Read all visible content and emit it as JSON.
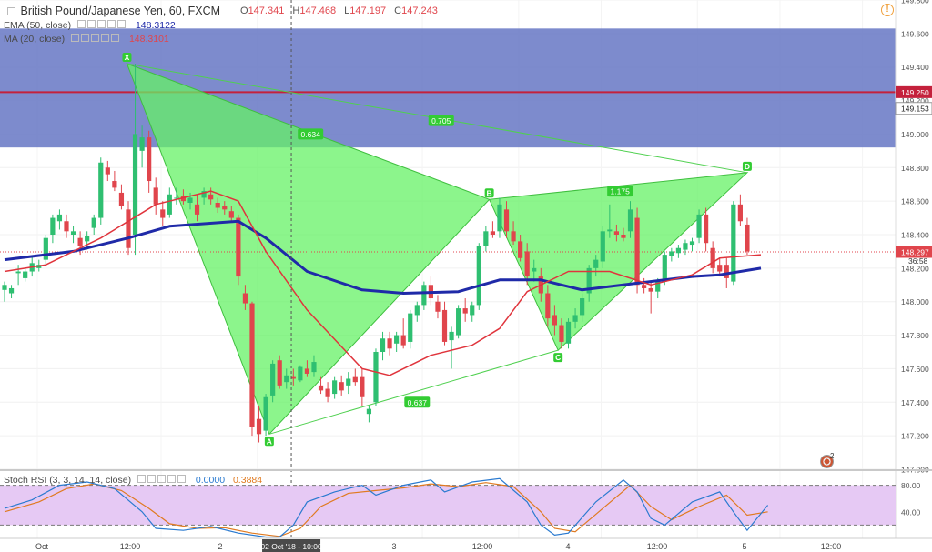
{
  "header": {
    "symbol": "British Pound/Japanese Yen, 60, FXCM",
    "open_label": "O",
    "open": "147.341",
    "high_label": "H",
    "high": "147.468",
    "low_label": "L",
    "low": "147.197",
    "close_label": "C",
    "close": "147.243"
  },
  "indicators": {
    "ema_label": "EMA (50, close)",
    "ema_value": "148.3122",
    "ma_label": "MA (20, close)",
    "ma_value": "148.3101"
  },
  "stoch": {
    "label": "Stoch RSI (3, 3, 14, 14, close)",
    "k_value": "0.0000",
    "d_value": "0.3884"
  },
  "flag_count": "2",
  "warning_glyph": "!",
  "colors": {
    "up": "#2fbf71",
    "down": "#e0454c",
    "ema": "#1f2aa8",
    "ma": "#e0343c",
    "harmonic": "#66f266",
    "zone": "#6677c4",
    "resistance": "#c4213c",
    "stoch_k": "#2a7ad0",
    "stoch_d": "#e07a20",
    "stoch_band": "#e6c9f4"
  },
  "chart_data": {
    "type": "candlestick",
    "title": "British Pound/Japanese Yen, 60, FXCM",
    "ylim": [
      147.0,
      149.8
    ],
    "y_ticks": [
      "147.000",
      "147.200",
      "147.400",
      "147.600",
      "147.800",
      "148.000",
      "148.200",
      "148.400",
      "148.600",
      "148.800",
      "149.000",
      "149.200",
      "149.400",
      "149.600",
      "149.800"
    ],
    "x_ticks": [
      "Oct",
      "12:00",
      "2",
      "3",
      "12:00",
      "4",
      "12:00",
      "5",
      "12:00"
    ],
    "crosshair_label": "02 Oct '18 - 10:00",
    "price_labels": [
      {
        "value": 149.25,
        "text": "149.250",
        "color": "#c4213c"
      },
      {
        "value": 149.153,
        "text": "149.153",
        "color": "#333333"
      },
      {
        "value": 148.297,
        "text": "148.297",
        "color": "#e0454c"
      }
    ],
    "countdown": "36:58",
    "zone": [
      148.92,
      149.63
    ],
    "resistance": 149.25,
    "current_price": 148.297,
    "candles": [
      {
        "o": 148.07,
        "h": 148.12,
        "l": 148.0,
        "c": 148.1
      },
      {
        "o": 148.05,
        "h": 148.1,
        "l": 148.02,
        "c": 148.08
      },
      {
        "o": 148.17,
        "h": 148.22,
        "l": 148.1,
        "c": 148.18
      },
      {
        "o": 148.14,
        "h": 148.2,
        "l": 148.12,
        "c": 148.18
      },
      {
        "o": 148.18,
        "h": 148.27,
        "l": 148.15,
        "c": 148.23
      },
      {
        "o": 148.2,
        "h": 148.25,
        "l": 148.18,
        "c": 148.22
      },
      {
        "o": 148.25,
        "h": 148.4,
        "l": 148.22,
        "c": 148.38
      },
      {
        "o": 148.4,
        "h": 148.52,
        "l": 148.35,
        "c": 148.5
      },
      {
        "o": 148.48,
        "h": 148.55,
        "l": 148.43,
        "c": 148.52
      },
      {
        "o": 148.48,
        "h": 148.52,
        "l": 148.38,
        "c": 148.42
      },
      {
        "o": 148.4,
        "h": 148.45,
        "l": 148.35,
        "c": 148.42
      },
      {
        "o": 148.38,
        "h": 148.42,
        "l": 148.28,
        "c": 148.33
      },
      {
        "o": 148.36,
        "h": 148.42,
        "l": 148.31,
        "c": 148.39
      },
      {
        "o": 148.44,
        "h": 148.52,
        "l": 148.4,
        "c": 148.5
      },
      {
        "o": 148.5,
        "h": 148.86,
        "l": 148.46,
        "c": 148.83
      },
      {
        "o": 148.8,
        "h": 148.84,
        "l": 148.72,
        "c": 148.76
      },
      {
        "o": 148.72,
        "h": 148.78,
        "l": 148.66,
        "c": 148.68
      },
      {
        "o": 148.65,
        "h": 148.7,
        "l": 148.55,
        "c": 148.57
      },
      {
        "o": 148.55,
        "h": 148.6,
        "l": 148.28,
        "c": 148.32
      },
      {
        "o": 148.4,
        "h": 149.42,
        "l": 148.28,
        "c": 149.0
      },
      {
        "o": 148.9,
        "h": 149.05,
        "l": 148.8,
        "c": 148.98
      },
      {
        "o": 148.98,
        "h": 149.02,
        "l": 148.65,
        "c": 148.72
      },
      {
        "o": 148.68,
        "h": 148.74,
        "l": 148.52,
        "c": 148.58
      },
      {
        "o": 148.55,
        "h": 148.6,
        "l": 148.45,
        "c": 148.5
      },
      {
        "o": 148.52,
        "h": 148.68,
        "l": 148.5,
        "c": 148.64
      },
      {
        "o": 148.62,
        "h": 148.68,
        "l": 148.58,
        "c": 148.62
      },
      {
        "o": 148.63,
        "h": 148.67,
        "l": 148.58,
        "c": 148.6
      },
      {
        "o": 148.59,
        "h": 148.65,
        "l": 148.55,
        "c": 148.62
      },
      {
        "o": 148.58,
        "h": 148.64,
        "l": 148.48,
        "c": 148.52
      },
      {
        "o": 148.62,
        "h": 148.68,
        "l": 148.58,
        "c": 148.66
      },
      {
        "o": 148.64,
        "h": 148.68,
        "l": 148.58,
        "c": 148.61
      },
      {
        "o": 148.59,
        "h": 148.62,
        "l": 148.53,
        "c": 148.56
      },
      {
        "o": 148.57,
        "h": 148.6,
        "l": 148.52,
        "c": 148.55
      },
      {
        "o": 148.54,
        "h": 148.57,
        "l": 148.48,
        "c": 148.5
      },
      {
        "o": 148.5,
        "h": 148.52,
        "l": 148.1,
        "c": 148.15
      },
      {
        "o": 148.05,
        "h": 148.1,
        "l": 147.95,
        "c": 147.99
      },
      {
        "o": 147.99,
        "h": 148.0,
        "l": 147.2,
        "c": 147.25
      },
      {
        "o": 147.3,
        "h": 147.38,
        "l": 147.16,
        "c": 147.21
      },
      {
        "o": 147.23,
        "h": 147.45,
        "l": 147.2,
        "c": 147.43
      },
      {
        "o": 147.44,
        "h": 147.65,
        "l": 147.4,
        "c": 147.63
      },
      {
        "o": 147.65,
        "h": 147.68,
        "l": 147.48,
        "c": 147.5
      },
      {
        "o": 147.52,
        "h": 147.6,
        "l": 147.48,
        "c": 147.56
      },
      {
        "o": 147.55,
        "h": 147.6,
        "l": 147.5,
        "c": 147.54
      },
      {
        "o": 147.53,
        "h": 147.62,
        "l": 147.52,
        "c": 147.61
      },
      {
        "o": 147.6,
        "h": 147.65,
        "l": 147.55,
        "c": 147.57
      },
      {
        "o": 147.58,
        "h": 147.68,
        "l": 147.55,
        "c": 147.64
      },
      {
        "o": 147.5,
        "h": 147.55,
        "l": 147.45,
        "c": 147.47
      },
      {
        "o": 147.48,
        "h": 147.52,
        "l": 147.4,
        "c": 147.43
      },
      {
        "o": 147.45,
        "h": 147.55,
        "l": 147.42,
        "c": 147.53
      },
      {
        "o": 147.52,
        "h": 147.56,
        "l": 147.44,
        "c": 147.47
      },
      {
        "o": 147.5,
        "h": 147.58,
        "l": 147.45,
        "c": 147.54
      },
      {
        "o": 147.55,
        "h": 147.6,
        "l": 147.5,
        "c": 147.52
      },
      {
        "o": 147.55,
        "h": 147.6,
        "l": 147.38,
        "c": 147.43
      },
      {
        "o": 147.33,
        "h": 147.38,
        "l": 147.28,
        "c": 147.36
      },
      {
        "o": 147.4,
        "h": 147.72,
        "l": 147.38,
        "c": 147.7
      },
      {
        "o": 147.7,
        "h": 147.82,
        "l": 147.65,
        "c": 147.78
      },
      {
        "o": 147.78,
        "h": 147.82,
        "l": 147.68,
        "c": 147.72
      },
      {
        "o": 147.75,
        "h": 147.82,
        "l": 147.7,
        "c": 147.8
      },
      {
        "o": 147.8,
        "h": 147.9,
        "l": 147.72,
        "c": 147.74
      },
      {
        "o": 147.76,
        "h": 147.95,
        "l": 147.72,
        "c": 147.93
      },
      {
        "o": 147.92,
        "h": 148.0,
        "l": 147.88,
        "c": 147.98
      },
      {
        "o": 147.98,
        "h": 148.12,
        "l": 147.95,
        "c": 148.1
      },
      {
        "o": 148.1,
        "h": 148.15,
        "l": 147.98,
        "c": 148.02
      },
      {
        "o": 148.0,
        "h": 148.04,
        "l": 147.9,
        "c": 147.94
      },
      {
        "o": 147.95,
        "h": 148.0,
        "l": 147.74,
        "c": 147.76
      },
      {
        "o": 147.77,
        "h": 147.85,
        "l": 147.6,
        "c": 147.82
      },
      {
        "o": 147.8,
        "h": 147.98,
        "l": 147.78,
        "c": 147.96
      },
      {
        "o": 147.96,
        "h": 148.02,
        "l": 147.88,
        "c": 147.93
      },
      {
        "o": 147.92,
        "h": 148.0,
        "l": 147.88,
        "c": 147.98
      },
      {
        "o": 147.98,
        "h": 148.35,
        "l": 147.95,
        "c": 148.33
      },
      {
        "o": 148.33,
        "h": 148.45,
        "l": 148.3,
        "c": 148.42
      },
      {
        "o": 148.42,
        "h": 148.48,
        "l": 148.38,
        "c": 148.4
      },
      {
        "o": 148.42,
        "h": 148.62,
        "l": 148.38,
        "c": 148.58
      },
      {
        "o": 148.55,
        "h": 148.6,
        "l": 148.38,
        "c": 148.42
      },
      {
        "o": 148.42,
        "h": 148.48,
        "l": 148.34,
        "c": 148.36
      },
      {
        "o": 148.36,
        "h": 148.4,
        "l": 148.24,
        "c": 148.26
      },
      {
        "o": 148.3,
        "h": 148.35,
        "l": 148.1,
        "c": 148.15
      },
      {
        "o": 148.18,
        "h": 148.25,
        "l": 148.12,
        "c": 148.2
      },
      {
        "o": 148.15,
        "h": 148.2,
        "l": 148.0,
        "c": 148.05
      },
      {
        "o": 148.05,
        "h": 148.1,
        "l": 147.85,
        "c": 147.9
      },
      {
        "o": 147.92,
        "h": 147.98,
        "l": 147.8,
        "c": 147.86
      },
      {
        "o": 147.86,
        "h": 147.9,
        "l": 147.72,
        "c": 147.76
      },
      {
        "o": 147.75,
        "h": 147.9,
        "l": 147.72,
        "c": 147.88
      },
      {
        "o": 147.88,
        "h": 147.96,
        "l": 147.84,
        "c": 147.92
      },
      {
        "o": 147.92,
        "h": 148.05,
        "l": 147.88,
        "c": 148.02
      },
      {
        "o": 148.05,
        "h": 148.22,
        "l": 148.0,
        "c": 148.2
      },
      {
        "o": 148.2,
        "h": 148.28,
        "l": 148.15,
        "c": 148.25
      },
      {
        "o": 148.24,
        "h": 148.45,
        "l": 148.2,
        "c": 148.42
      },
      {
        "o": 148.42,
        "h": 148.58,
        "l": 148.38,
        "c": 148.43
      },
      {
        "o": 148.42,
        "h": 148.46,
        "l": 148.36,
        "c": 148.4
      },
      {
        "o": 148.4,
        "h": 148.44,
        "l": 148.36,
        "c": 148.38
      },
      {
        "o": 148.42,
        "h": 148.6,
        "l": 148.38,
        "c": 148.55
      },
      {
        "o": 148.5,
        "h": 148.56,
        "l": 148.05,
        "c": 148.1
      },
      {
        "o": 148.1,
        "h": 148.14,
        "l": 148.05,
        "c": 148.08
      },
      {
        "o": 148.08,
        "h": 148.12,
        "l": 147.93,
        "c": 148.06
      },
      {
        "o": 148.06,
        "h": 148.14,
        "l": 148.02,
        "c": 148.12
      },
      {
        "o": 148.12,
        "h": 148.3,
        "l": 148.1,
        "c": 148.28
      },
      {
        "o": 148.27,
        "h": 148.32,
        "l": 148.24,
        "c": 148.3
      },
      {
        "o": 148.29,
        "h": 148.34,
        "l": 148.26,
        "c": 148.32
      },
      {
        "o": 148.31,
        "h": 148.37,
        "l": 148.28,
        "c": 148.35
      },
      {
        "o": 148.34,
        "h": 148.38,
        "l": 148.3,
        "c": 148.36
      },
      {
        "o": 148.38,
        "h": 148.55,
        "l": 148.35,
        "c": 148.52
      },
      {
        "o": 148.52,
        "h": 148.56,
        "l": 148.3,
        "c": 148.35
      },
      {
        "o": 148.32,
        "h": 148.36,
        "l": 148.17,
        "c": 148.2
      },
      {
        "o": 148.22,
        "h": 148.26,
        "l": 148.15,
        "c": 148.18
      },
      {
        "o": 148.22,
        "h": 148.26,
        "l": 148.08,
        "c": 148.14
      },
      {
        "o": 148.12,
        "h": 148.6,
        "l": 148.1,
        "c": 148.58
      },
      {
        "o": 148.58,
        "h": 148.64,
        "l": 148.45,
        "c": 148.48
      },
      {
        "o": 148.46,
        "h": 148.5,
        "l": 148.28,
        "c": 148.3
      }
    ],
    "ema50": [
      {
        "i": 0,
        "v": 148.25
      },
      {
        "i": 10,
        "v": 148.3
      },
      {
        "i": 18,
        "v": 148.38
      },
      {
        "i": 24,
        "v": 148.45
      },
      {
        "i": 34,
        "v": 148.48
      },
      {
        "i": 38,
        "v": 148.38
      },
      {
        "i": 44,
        "v": 148.18
      },
      {
        "i": 52,
        "v": 148.07
      },
      {
        "i": 58,
        "v": 148.05
      },
      {
        "i": 66,
        "v": 148.06
      },
      {
        "i": 72,
        "v": 148.13
      },
      {
        "i": 78,
        "v": 148.13
      },
      {
        "i": 84,
        "v": 148.07
      },
      {
        "i": 92,
        "v": 148.11
      },
      {
        "i": 100,
        "v": 148.15
      },
      {
        "i": 104,
        "v": 148.16
      },
      {
        "i": 110,
        "v": 148.2
      }
    ],
    "ma20": [
      {
        "i": 0,
        "v": 148.18
      },
      {
        "i": 6,
        "v": 148.22
      },
      {
        "i": 14,
        "v": 148.38
      },
      {
        "i": 22,
        "v": 148.58
      },
      {
        "i": 30,
        "v": 148.66
      },
      {
        "i": 34,
        "v": 148.6
      },
      {
        "i": 38,
        "v": 148.3
      },
      {
        "i": 44,
        "v": 147.95
      },
      {
        "i": 52,
        "v": 147.6
      },
      {
        "i": 56,
        "v": 147.56
      },
      {
        "i": 62,
        "v": 147.68
      },
      {
        "i": 68,
        "v": 147.74
      },
      {
        "i": 72,
        "v": 147.84
      },
      {
        "i": 76,
        "v": 148.06
      },
      {
        "i": 82,
        "v": 148.18
      },
      {
        "i": 88,
        "v": 148.18
      },
      {
        "i": 94,
        "v": 148.1
      },
      {
        "i": 100,
        "v": 148.16
      },
      {
        "i": 104,
        "v": 148.26
      },
      {
        "i": 110,
        "v": 148.28
      }
    ],
    "harmonic_pattern": {
      "points": [
        {
          "label": "X",
          "i": 17.8,
          "v": 149.42
        },
        {
          "label": "A",
          "i": 38.5,
          "v": 147.21
        },
        {
          "label": "B",
          "i": 70.5,
          "v": 148.61
        },
        {
          "label": "C",
          "i": 80.5,
          "v": 147.71
        },
        {
          "label": "D",
          "i": 108.0,
          "v": 148.77
        }
      ],
      "ratios": [
        {
          "text": "0.634",
          "i": 44.5,
          "v": 149.0
        },
        {
          "text": "0.705",
          "i": 63.5,
          "v": 149.08
        },
        {
          "text": "0.637",
          "i": 60.0,
          "v": 147.4
        },
        {
          "text": "1.175",
          "i": 89.5,
          "v": 148.66
        }
      ]
    },
    "stoch_rsi": {
      "ylim": [
        0,
        100
      ],
      "y_ticks": [
        "40.00",
        "80.00"
      ],
      "band": [
        20,
        80
      ],
      "k": [
        {
          "i": 0,
          "v": 45
        },
        {
          "i": 4,
          "v": 58
        },
        {
          "i": 8,
          "v": 80
        },
        {
          "i": 12,
          "v": 85
        },
        {
          "i": 16,
          "v": 75
        },
        {
          "i": 20,
          "v": 40
        },
        {
          "i": 22,
          "v": 15
        },
        {
          "i": 26,
          "v": 12
        },
        {
          "i": 30,
          "v": 18
        },
        {
          "i": 34,
          "v": 8
        },
        {
          "i": 38,
          "v": 2
        },
        {
          "i": 40,
          "v": 2
        },
        {
          "i": 42,
          "v": 20
        },
        {
          "i": 44,
          "v": 55
        },
        {
          "i": 48,
          "v": 70
        },
        {
          "i": 52,
          "v": 80
        },
        {
          "i": 54,
          "v": 65
        },
        {
          "i": 58,
          "v": 80
        },
        {
          "i": 62,
          "v": 88
        },
        {
          "i": 64,
          "v": 70
        },
        {
          "i": 68,
          "v": 85
        },
        {
          "i": 72,
          "v": 90
        },
        {
          "i": 76,
          "v": 55
        },
        {
          "i": 78,
          "v": 20
        },
        {
          "i": 80,
          "v": 5
        },
        {
          "i": 82,
          "v": 8
        },
        {
          "i": 86,
          "v": 55
        },
        {
          "i": 90,
          "v": 88
        },
        {
          "i": 92,
          "v": 70
        },
        {
          "i": 94,
          "v": 30
        },
        {
          "i": 96,
          "v": 20
        },
        {
          "i": 100,
          "v": 55
        },
        {
          "i": 104,
          "v": 70
        },
        {
          "i": 106,
          "v": 40
        },
        {
          "i": 108,
          "v": 12
        },
        {
          "i": 111,
          "v": 50
        }
      ],
      "d": [
        {
          "i": 0,
          "v": 40
        },
        {
          "i": 5,
          "v": 55
        },
        {
          "i": 9,
          "v": 75
        },
        {
          "i": 13,
          "v": 82
        },
        {
          "i": 17,
          "v": 72
        },
        {
          "i": 21,
          "v": 45
        },
        {
          "i": 24,
          "v": 22
        },
        {
          "i": 28,
          "v": 15
        },
        {
          "i": 32,
          "v": 16
        },
        {
          "i": 36,
          "v": 8
        },
        {
          "i": 40,
          "v": 3
        },
        {
          "i": 43,
          "v": 15
        },
        {
          "i": 46,
          "v": 48
        },
        {
          "i": 50,
          "v": 68
        },
        {
          "i": 54,
          "v": 72
        },
        {
          "i": 58,
          "v": 76
        },
        {
          "i": 62,
          "v": 82
        },
        {
          "i": 66,
          "v": 78
        },
        {
          "i": 70,
          "v": 84
        },
        {
          "i": 74,
          "v": 78
        },
        {
          "i": 78,
          "v": 40
        },
        {
          "i": 80,
          "v": 15
        },
        {
          "i": 83,
          "v": 10
        },
        {
          "i": 87,
          "v": 45
        },
        {
          "i": 91,
          "v": 80
        },
        {
          "i": 94,
          "v": 48
        },
        {
          "i": 97,
          "v": 28
        },
        {
          "i": 101,
          "v": 48
        },
        {
          "i": 105,
          "v": 65
        },
        {
          "i": 108,
          "v": 35
        },
        {
          "i": 111,
          "v": 40
        }
      ]
    }
  }
}
